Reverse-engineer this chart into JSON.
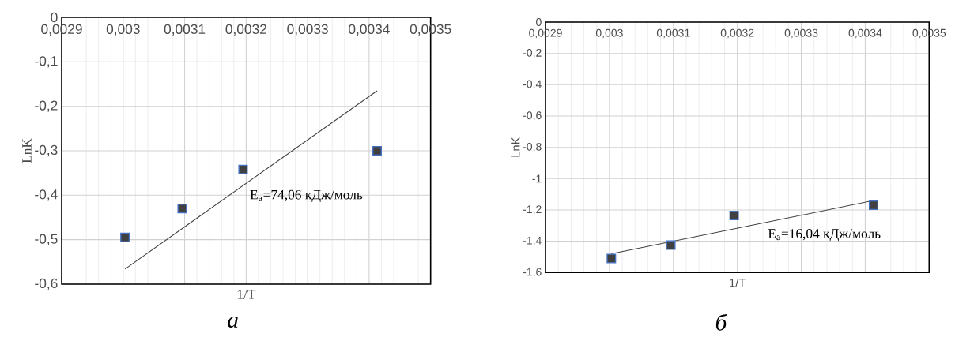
{
  "chart_data": [
    {
      "type": "scatter",
      "xlabel": "1/T",
      "ylabel": "LnK",
      "series": [
        {
          "type": "scatter",
          "color": "#404040",
          "marker": "square",
          "x": [
            0.003003,
            0.003096,
            0.003195,
            0.003413
          ],
          "values": [
            -0.495,
            -0.43,
            -0.342,
            -0.3
          ]
        },
        {
          "type": "line",
          "color": "#404040",
          "marker": "none",
          "x": [
            0.003003,
            0.003413
          ],
          "values": [
            -0.566,
            -0.165
          ]
        }
      ],
      "xlim": [
        0.0029,
        0.0035
      ],
      "ylim": [
        -0.6,
        0
      ],
      "xticks": [
        {
          "value": 0.0029,
          "label": "0,0029"
        },
        {
          "value": 0.003,
          "label": "0,003"
        },
        {
          "value": 0.0031,
          "label": "0,0031"
        },
        {
          "value": 0.0032,
          "label": "0,0032"
        },
        {
          "value": 0.0033,
          "label": "0,0033"
        },
        {
          "value": 0.0034,
          "label": "0,0034"
        },
        {
          "value": 0.0035,
          "label": "0,0035"
        }
      ],
      "yticks": [
        0,
        {
          "value": -0.1,
          "label": "-0,1"
        },
        {
          "value": -0.2,
          "label": "-0,2"
        },
        {
          "value": -0.3,
          "label": "-0,3"
        },
        {
          "value": -0.4,
          "label": "-0,4"
        },
        {
          "value": -0.5,
          "label": "-0,5"
        },
        {
          "value": -0.6,
          "label": "-0,6"
        }
      ],
      "grid": true,
      "annotations": [
        "E$_{a}$=74,06 кДж/моль",
        "а"
      ]
    },
    {
      "type": "scatter",
      "xlabel": "1/T",
      "ylabel": "LnK",
      "series": [
        {
          "type": "scatter",
          "color": "#404040",
          "marker": "square",
          "x": [
            0.003003,
            0.003096,
            0.003195,
            0.003413
          ],
          "values": [
            -1.51,
            -1.425,
            -1.235,
            -1.17
          ]
        },
        {
          "type": "line",
          "color": "#404040",
          "marker": "none",
          "x": [
            0.003003,
            0.003413
          ],
          "values": [
            -1.48,
            -1.14
          ]
        }
      ],
      "xlim": [
        0.0029,
        0.0035
      ],
      "ylim": [
        -1.6,
        0
      ],
      "xticks": [
        {
          "value": 0.0029,
          "label": "0,0029"
        },
        {
          "value": 0.003,
          "label": "0,003"
        },
        {
          "value": 0.0031,
          "label": "0,0031"
        },
        {
          "value": 0.0032,
          "label": "0,0032"
        },
        {
          "value": 0.0033,
          "label": "0,0033"
        },
        {
          "value": 0.0034,
          "label": "0,0034"
        },
        {
          "value": 0.0035,
          "label": "0,0035"
        }
      ],
      "yticks": [
        0,
        {
          "value": -0.2,
          "label": "-0,2"
        },
        {
          "value": -0.4,
          "label": "-0,4"
        },
        {
          "value": -0.6,
          "label": "-0,6"
        },
        {
          "value": -0.8,
          "label": "-0,8"
        },
        -1,
        {
          "value": -1.2,
          "label": "-1,2"
        },
        {
          "value": -1.4,
          "label": "-1,4"
        },
        {
          "value": -1.6,
          "label": "-1,6"
        }
      ],
      "grid": true,
      "annotations": [
        "E$_{a}$=16,04 кДж/моль",
        "б"
      ]
    }
  ]
}
